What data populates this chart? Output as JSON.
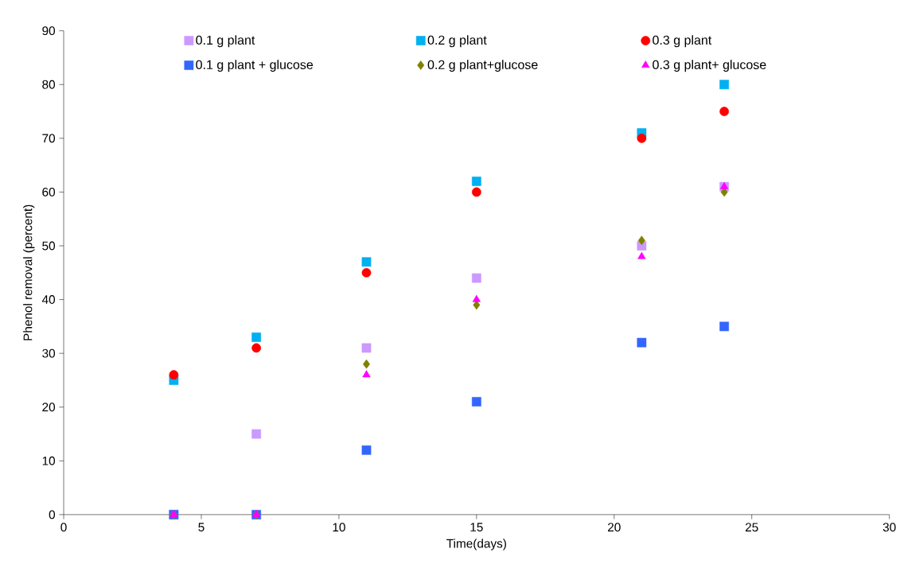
{
  "chart_data": {
    "type": "scatter",
    "xlabel": "Time(days)",
    "ylabel": "Phenol removal (percent)",
    "x": [
      4,
      7,
      11,
      15,
      21,
      24
    ],
    "series": [
      {
        "name": "0.1 g plant",
        "color": "#cc99ff",
        "marker": "square",
        "values": [
          0,
          15,
          31,
          44,
          50,
          61
        ]
      },
      {
        "name": "0.2 g plant",
        "color": "#00b0f0",
        "marker": "square",
        "values": [
          25,
          33,
          47,
          62,
          71,
          80
        ]
      },
      {
        "name": "0.3 g plant",
        "color": "#ff0000",
        "marker": "circle",
        "values": [
          26,
          31,
          45,
          60,
          70,
          75
        ]
      },
      {
        "name": "0.1 g plant + glucose",
        "color": "#3366ff",
        "marker": "square",
        "values": [
          0,
          0,
          12,
          21,
          32,
          35
        ]
      },
      {
        "name": "0.2 g plant+glucose",
        "color": "#808000",
        "marker": "diamond",
        "values": [
          0,
          0,
          28,
          39,
          51,
          60
        ]
      },
      {
        "name": "0.3 g plant+ glucose",
        "color": "#ff00ff",
        "marker": "triangle",
        "values": [
          0,
          0,
          26,
          40,
          48,
          61
        ]
      }
    ],
    "xlim": [
      0,
      30
    ],
    "xticks": [
      0,
      5,
      10,
      15,
      20,
      25,
      30
    ],
    "ylim": [
      0,
      90
    ],
    "yticks": [
      0,
      10,
      20,
      30,
      40,
      50,
      60,
      70,
      80,
      90
    ],
    "grid": false,
    "legend": "top"
  }
}
